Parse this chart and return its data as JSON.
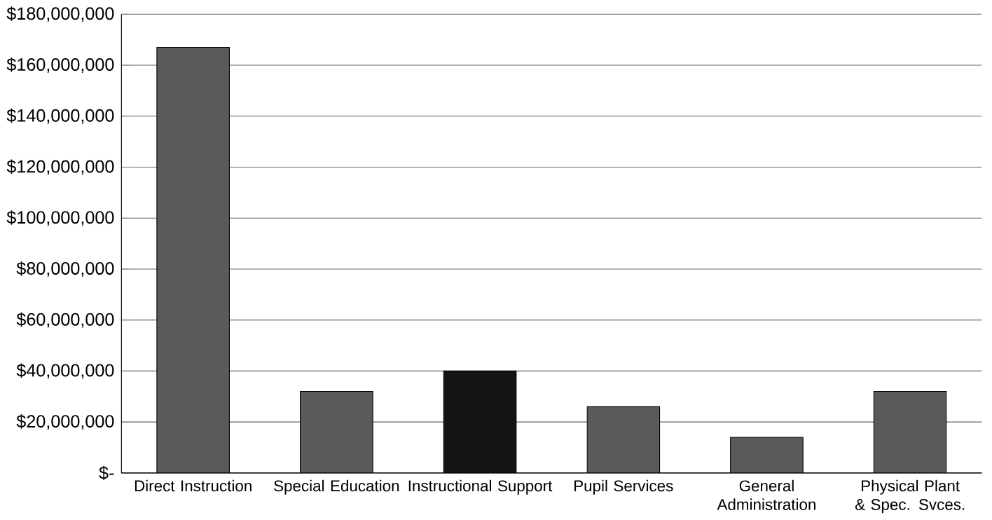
{
  "chart_data": {
    "type": "bar",
    "categories": [
      "Direct Instruction",
      "Special Education",
      "Instructional Support",
      "Pupil Services",
      "General Administration",
      "Physical Plant & Spec. Svces."
    ],
    "values": [
      167000000,
      32000000,
      40000000,
      26000000,
      14000000,
      32000000
    ],
    "colors": [
      "#5a5a5a",
      "#5a5a5a",
      "#141414",
      "#5a5a5a",
      "#5a5a5a",
      "#5a5a5a"
    ],
    "ylim": [
      0,
      180000000
    ],
    "yticks": [
      {
        "value": 0,
        "label": "$-"
      },
      {
        "value": 20000000,
        "label": "$20,000,000"
      },
      {
        "value": 40000000,
        "label": "$40,000,000"
      },
      {
        "value": 60000000,
        "label": "$60,000,000"
      },
      {
        "value": 80000000,
        "label": "$80,000,000"
      },
      {
        "value": 100000000,
        "label": "$100,000,000"
      },
      {
        "value": 120000000,
        "label": "$120,000,000"
      },
      {
        "value": 140000000,
        "label": "$140,000,000"
      },
      {
        "value": 160000000,
        "label": "$160,000,000"
      },
      {
        "value": 180000000,
        "label": "$180,000,000"
      }
    ],
    "grid": "y"
  }
}
